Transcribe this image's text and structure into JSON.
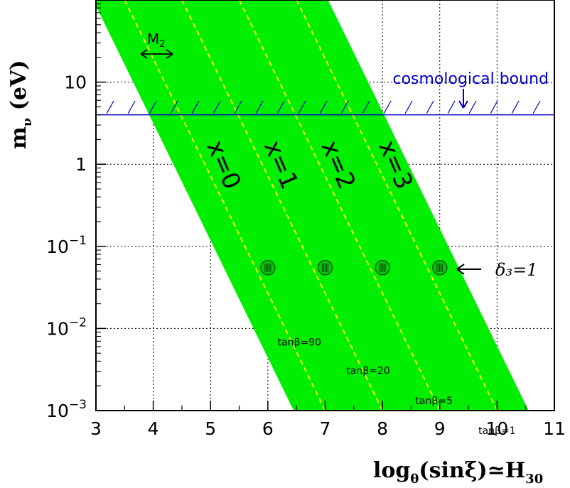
{
  "chart_data": {
    "type": "line",
    "xlabel_main": "log",
    "xlabel_sub": "θ",
    "xlabel_rest": "(sinξ)",
    "xlabel_approx": "≃",
    "xlabel_h": "H",
    "xlabel_h_sub": "30",
    "ylabel_main": "m",
    "ylabel_sub": "ν",
    "ylabel_unit": " (eV)",
    "x_ticks": [
      "3",
      "4",
      "5",
      "6",
      "7",
      "8",
      "9",
      "10",
      "11"
    ],
    "y_ticks": [
      {
        "value": 0.001,
        "base": "10",
        "exp": "−3"
      },
      {
        "value": 0.01,
        "base": "10",
        "exp": "−2"
      },
      {
        "value": 0.1,
        "base": "10",
        "exp": "−1"
      },
      {
        "value": 1,
        "base": "1",
        "exp": ""
      },
      {
        "value": 10,
        "base": "10",
        "exp": ""
      }
    ],
    "xlim": [
      3,
      11
    ],
    "ylim": [
      0.001,
      100
    ],
    "log_y": true,
    "grid": true,
    "bands": [
      {
        "name": "x=0",
        "center": [
          [
            3.5,
            100
          ],
          [
            7.0,
            0.001
          ]
        ]
      },
      {
        "name": "x=1",
        "center": [
          [
            4.5,
            100
          ],
          [
            8.0,
            0.001
          ]
        ]
      },
      {
        "name": "x=2",
        "center": [
          [
            5.5,
            100
          ],
          [
            9.0,
            0.001
          ]
        ]
      },
      {
        "name": "x=3",
        "center": [
          [
            6.5,
            100
          ],
          [
            10.0,
            0.001
          ]
        ]
      }
    ],
    "band_halfwidth": 0.55,
    "band_color": "#00ee00",
    "center_line_color": "#ffff00",
    "markers": [
      {
        "x": 6,
        "y": 0.055
      },
      {
        "x": 7,
        "y": 0.055
      },
      {
        "x": 8,
        "y": 0.055
      },
      {
        "x": 9,
        "y": 0.055
      }
    ],
    "cosmological_bound": {
      "y": 4,
      "label": "cosmological bound",
      "color": "#0000cc"
    },
    "tanbeta_labels": [
      {
        "text": "tanβ=90",
        "x": 6.55,
        "y": 0.0062
      },
      {
        "text": "tanβ=20",
        "x": 7.75,
        "y": 0.0028
      },
      {
        "text": "tanβ=5",
        "x": 8.9,
        "y": 0.0012
      },
      {
        "text": "tanβ=1",
        "x": 10.0,
        "y": 0.00052
      }
    ],
    "band_labels": [
      {
        "text": "x=0",
        "x": 5.1,
        "y": 0.9
      },
      {
        "text": "x=1",
        "x": 6.1,
        "y": 0.9
      },
      {
        "text": "x=2",
        "x": 7.1,
        "y": 0.9
      },
      {
        "text": "x=3",
        "x": 8.1,
        "y": 0.9
      }
    ],
    "delta_label": {
      "text": "δ₃=1",
      "x": 9.75,
      "y": 0.055
    },
    "m2_label": {
      "text": "M",
      "sub": "2"
    }
  }
}
